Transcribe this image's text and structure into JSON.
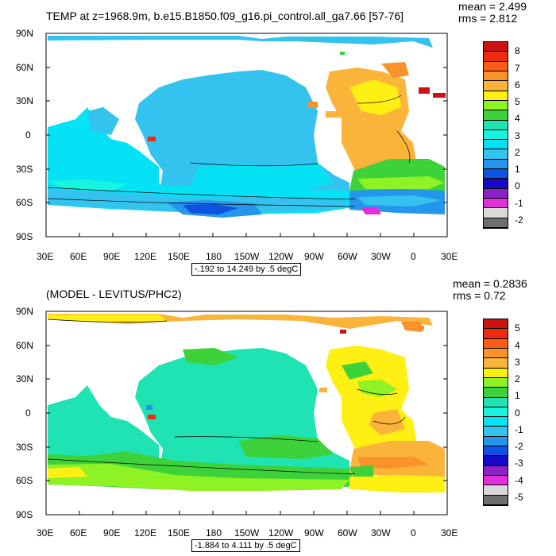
{
  "panels": [
    {
      "title": "TEMP at z=1968.9m, b.e15.B1850.f09_g16.pi_control.all_ga7.66 [57-76]",
      "stats": {
        "mean": "mean = 2.499",
        "rms": "rms = 2.812"
      },
      "range_note": "-.192 to 14.249 by .5 degC",
      "colorbar": {
        "labels": [
          "8",
          "7",
          "6",
          "5",
          "4",
          "3",
          "2",
          "1",
          "0",
          "-1",
          "-2"
        ],
        "colors": [
          "#c9140f",
          "#ee2a10",
          "#fd5c14",
          "#f9922b",
          "#fbb43a",
          "#ffef12",
          "#8ef224",
          "#3ed23a",
          "#1fe3b2",
          "#18f5de",
          "#06e2f5",
          "#34c3ee",
          "#2497ed",
          "#0d52e0",
          "#1808c8",
          "#8b22c6",
          "#e12fd9",
          "#d9d9d9",
          "#6e6e6e"
        ]
      }
    },
    {
      "title": "(MODEL - LEVITUS/PHC2)",
      "stats": {
        "mean": "mean = 0.2836",
        "rms": "rms = 0.72"
      },
      "range_note": "-1.884 to 4.111 by .5 degC",
      "colorbar": {
        "labels": [
          "5",
          "4",
          "3",
          "2",
          "1",
          "0",
          "-1",
          "-2",
          "-3",
          "-4",
          "-5"
        ],
        "colors": [
          "#c9140f",
          "#ee2a10",
          "#fd5c14",
          "#f9922b",
          "#fbb43a",
          "#ffef12",
          "#8ef224",
          "#3ed23a",
          "#1fe3b2",
          "#18f5de",
          "#06e2f5",
          "#34c3ee",
          "#2497ed",
          "#0d52e0",
          "#1808c8",
          "#8b22c6",
          "#e12fd9",
          "#d9d9d9",
          "#6e6e6e"
        ]
      }
    }
  ],
  "axes": {
    "lat_labels": [
      "90N",
      "60N",
      "30N",
      "0",
      "30S",
      "60S",
      "90S"
    ],
    "lon_labels": [
      "30E",
      "60E",
      "90E",
      "120E",
      "150E",
      "180",
      "150W",
      "120W",
      "90W",
      "60W",
      "30W",
      "0",
      "30E"
    ]
  }
}
